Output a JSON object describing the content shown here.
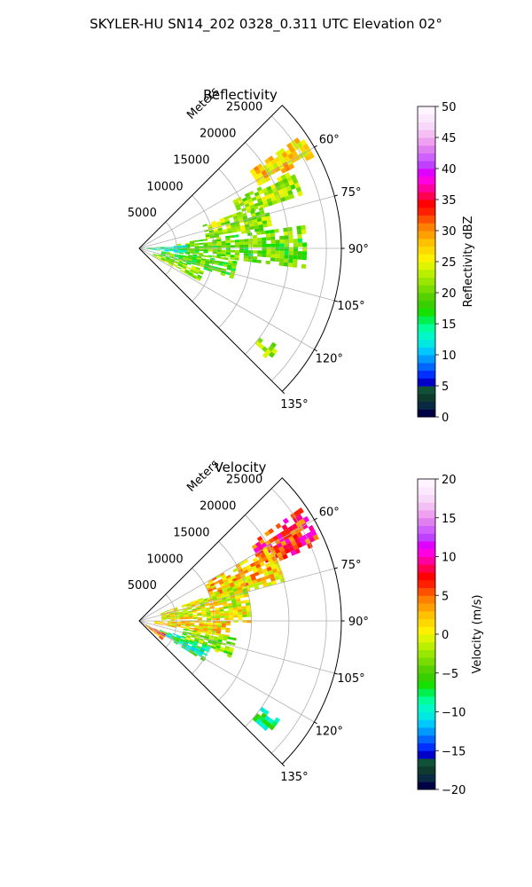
{
  "figure": {
    "suptitle": "SKYLER-HU  SN14_202  0328_0.311 UTC Elevation 02°"
  },
  "colors": {
    "reflectivity_cmap": [
      "#000044",
      "#0a2a44",
      "#0f3b2f",
      "#11513a",
      "#0000c8",
      "#0030ff",
      "#0066ff",
      "#0099ff",
      "#00c8ff",
      "#00e8e0",
      "#00f8c8",
      "#00ff99",
      "#00f050",
      "#16e000",
      "#3ad000",
      "#55d000",
      "#78dc00",
      "#99e600",
      "#bbef00",
      "#ddf500",
      "#fff000",
      "#ffd800",
      "#ffc000",
      "#ffa000",
      "#ff8000",
      "#ff5000",
      "#ff2000",
      "#ff0000",
      "#ff0050",
      "#ff00a0",
      "#ff00e0",
      "#e000ff",
      "#c040ff",
      "#d060ff",
      "#e080f0",
      "#f0a0f0",
      "#f4c0f4",
      "#f8d8f8",
      "#fce8fc",
      "#fff4ff"
    ],
    "velocity_cmap": [
      "#000044",
      "#0a2a44",
      "#0f3b2f",
      "#11513a",
      "#0000c8",
      "#0030ff",
      "#0066ff",
      "#0099ff",
      "#00c8ff",
      "#00e8e0",
      "#00f8c8",
      "#00ff99",
      "#00f050",
      "#16e000",
      "#3ad000",
      "#55d000",
      "#78dc00",
      "#99e600",
      "#bbef00",
      "#ddf500",
      "#fff000",
      "#ffd800",
      "#ffc000",
      "#ffa000",
      "#ff8000",
      "#ff5000",
      "#ff2000",
      "#ff0000",
      "#ff0050",
      "#ff00a0",
      "#ff00e0",
      "#e000ff",
      "#c040ff",
      "#d060ff",
      "#e080f0",
      "#f0a0f0",
      "#f4c0f4",
      "#f8d8f8",
      "#fce8fc",
      "#fff4ff"
    ]
  },
  "chart_data": [
    {
      "type": "heatmap",
      "projection": "polar-sector",
      "title": "Reflectivity",
      "radial_label": "Meters",
      "r_ticks": [
        5000,
        10000,
        15000,
        20000,
        25000
      ],
      "r_tick_labels": [
        "5000",
        "10000",
        "15000",
        "20000",
        "25000"
      ],
      "rlim": [
        0,
        27000
      ],
      "theta_ticks": [
        60,
        75,
        90,
        105,
        120,
        135
      ],
      "theta_tick_labels": [
        "60°",
        "75°",
        "90°",
        "105°",
        "120°",
        "135°"
      ],
      "theta_range": [
        45,
        135
      ],
      "grid": true,
      "colorbar": {
        "label": "Reflectivity dBZ",
        "vmin": 0,
        "vmax": 50,
        "ticks": [
          0,
          5,
          10,
          15,
          20,
          25,
          30,
          35,
          40,
          45,
          50
        ],
        "tick_labels": [
          "0",
          "5",
          "10",
          "15",
          "20",
          "25",
          "30",
          "35",
          "40",
          "45",
          "50"
        ]
      },
      "echo_regions": [
        {
          "az": [
            55,
            62
          ],
          "range": [
            18000,
            26000
          ],
          "value": 27
        },
        {
          "az": [
            63,
            72
          ],
          "range": [
            14000,
            23000
          ],
          "value": 22
        },
        {
          "az": [
            70,
            82
          ],
          "range": [
            9000,
            18000
          ],
          "value": 22
        },
        {
          "az": [
            82,
            96
          ],
          "range": [
            5000,
            22000
          ],
          "value": 20
        },
        {
          "az": [
            96,
            108
          ],
          "range": [
            3000,
            13000
          ],
          "value": 19
        },
        {
          "az": [
            108,
            118
          ],
          "range": [
            2000,
            9000
          ],
          "value": 21
        },
        {
          "az": [
            86,
            96
          ],
          "range": [
            1000,
            6000
          ],
          "value": 14
        },
        {
          "az": [
            125,
            130
          ],
          "range": [
            20000,
            23000
          ],
          "value": 22
        }
      ]
    },
    {
      "type": "heatmap",
      "projection": "polar-sector",
      "title": "Velocity",
      "radial_label": "Meters",
      "r_ticks": [
        5000,
        10000,
        15000,
        20000,
        25000
      ],
      "r_tick_labels": [
        "5000",
        "10000",
        "15000",
        "20000",
        "25000"
      ],
      "rlim": [
        0,
        27000
      ],
      "theta_ticks": [
        60,
        75,
        90,
        105,
        120,
        135
      ],
      "theta_tick_labels": [
        "60°",
        "75°",
        "90°",
        "105°",
        "120°",
        "135°"
      ],
      "theta_range": [
        45,
        135
      ],
      "grid": true,
      "colorbar": {
        "label": "Velocity (m/s)",
        "vmin": -20,
        "vmax": 20,
        "ticks": [
          -20,
          -15,
          -10,
          -5,
          0,
          5,
          10,
          15,
          20
        ],
        "tick_labels": [
          "−20",
          "−15",
          "−10",
          "−5",
          "0",
          "5",
          "10",
          "15",
          "20"
        ]
      },
      "echo_regions": [
        {
          "az": [
            55,
            66
          ],
          "range": [
            18000,
            26000
          ],
          "value": 7
        },
        {
          "az": [
            60,
            75
          ],
          "range": [
            10000,
            20000
          ],
          "value": 2
        },
        {
          "az": [
            70,
            90
          ],
          "range": [
            3000,
            15000
          ],
          "value": 0
        },
        {
          "az": [
            90,
            100
          ],
          "range": [
            2000,
            12000
          ],
          "value": 1
        },
        {
          "az": [
            100,
            112
          ],
          "range": [
            6000,
            13000
          ],
          "value": -3
        },
        {
          "az": [
            110,
            122
          ],
          "range": [
            3000,
            10000
          ],
          "value": -8
        },
        {
          "az": [
            115,
            130
          ],
          "range": [
            1000,
            4000
          ],
          "value": 5
        },
        {
          "az": [
            125,
            131
          ],
          "range": [
            20000,
            23000
          ],
          "value": -9
        }
      ]
    }
  ]
}
